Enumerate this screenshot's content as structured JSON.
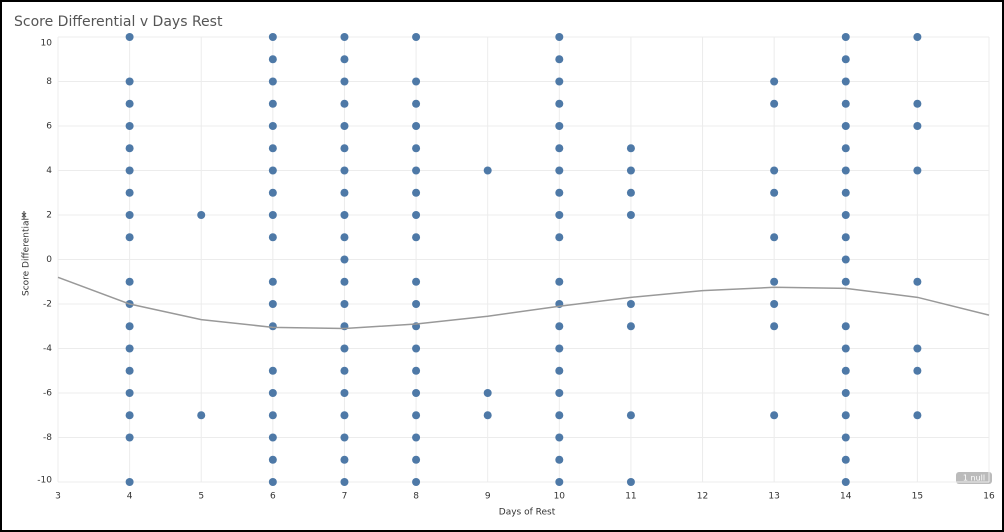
{
  "chart_data": {
    "type": "scatter",
    "title": "Score Differential v Days Rest",
    "x_label": "Days of Rest",
    "y_label": "Score Differential",
    "null_indicator": "1 null",
    "xlim": [
      3,
      16
    ],
    "xticks": [
      3,
      4,
      5,
      6,
      7,
      8,
      9,
      10,
      11,
      12,
      13,
      14,
      15,
      16
    ],
    "ylim": [
      -10,
      10
    ],
    "yticks": [
      -10,
      -8,
      -6,
      -4,
      -2,
      0,
      2,
      4,
      6,
      8,
      10
    ],
    "grid": true,
    "series": [
      {
        "color": "#4e79a7",
        "x": [
          4,
          4,
          4,
          4,
          4,
          4,
          4,
          4,
          4,
          4,
          4,
          4,
          4,
          4,
          4,
          4,
          4,
          4,
          5,
          5,
          6,
          6,
          6,
          6,
          6,
          6,
          6,
          6,
          6,
          6,
          6,
          6,
          6,
          6,
          6,
          6,
          6,
          6,
          6,
          7,
          7,
          7,
          7,
          7,
          7,
          7,
          7,
          7,
          7,
          7,
          7,
          7,
          7,
          7,
          7,
          7,
          7,
          7,
          7,
          7,
          8,
          8,
          8,
          8,
          8,
          8,
          8,
          8,
          8,
          8,
          8,
          8,
          8,
          8,
          8,
          8,
          8,
          8,
          8,
          9,
          9,
          9,
          10,
          10,
          10,
          10,
          10,
          10,
          10,
          10,
          10,
          10,
          10,
          10,
          10,
          10,
          10,
          10,
          10,
          10,
          10,
          10,
          11,
          11,
          11,
          11,
          11,
          11,
          11,
          11,
          13,
          13,
          13,
          13,
          13,
          13,
          13,
          13,
          13,
          14,
          14,
          14,
          14,
          14,
          14,
          14,
          14,
          14,
          14,
          14,
          14,
          14,
          14,
          14,
          14,
          14,
          14,
          14,
          14,
          15,
          15,
          15,
          15,
          15,
          15,
          15,
          15
        ],
        "values": [
          10,
          8,
          7,
          6,
          5,
          4,
          3,
          2,
          1,
          -1,
          -2,
          -3,
          -4,
          -5,
          -6,
          -7,
          -8,
          -10,
          2,
          -7,
          10,
          9,
          8,
          7,
          6,
          5,
          4,
          3,
          2,
          1,
          -1,
          -2,
          -3,
          -5,
          -6,
          -7,
          -8,
          -9,
          -10,
          10,
          9,
          8,
          7,
          6,
          5,
          4,
          3,
          2,
          1,
          0,
          -1,
          -2,
          -3,
          -4,
          -5,
          -6,
          -7,
          -8,
          -9,
          -10,
          10,
          8,
          7,
          6,
          5,
          4,
          3,
          2,
          1,
          -1,
          -2,
          -3,
          -4,
          -5,
          -6,
          -7,
          -8,
          -9,
          -10,
          4,
          -6,
          -7,
          10,
          9,
          8,
          7,
          6,
          5,
          4,
          3,
          2,
          1,
          -1,
          -2,
          -3,
          -4,
          -5,
          -6,
          -7,
          -8,
          -9,
          -10,
          5,
          4,
          3,
          2,
          -2,
          -3,
          -7,
          -10,
          8,
          7,
          4,
          3,
          1,
          -1,
          -2,
          -3,
          -7,
          10,
          9,
          8,
          7,
          6,
          5,
          4,
          3,
          2,
          1,
          0,
          -1,
          -3,
          -4,
          -5,
          -6,
          -7,
          -8,
          -9,
          -10,
          10,
          7,
          6,
          4,
          -1,
          -4,
          -5,
          -7
        ]
      }
    ],
    "trend_line": {
      "color": "#999999",
      "x": [
        3,
        4,
        5,
        6,
        7,
        8,
        9,
        10,
        11,
        12,
        13,
        14,
        15,
        16
      ],
      "values": [
        -0.8,
        -2.0,
        -2.7,
        -3.05,
        -3.1,
        -2.9,
        -2.55,
        -2.1,
        -1.7,
        -1.4,
        -1.25,
        -1.3,
        -1.7,
        -2.5
      ]
    }
  }
}
